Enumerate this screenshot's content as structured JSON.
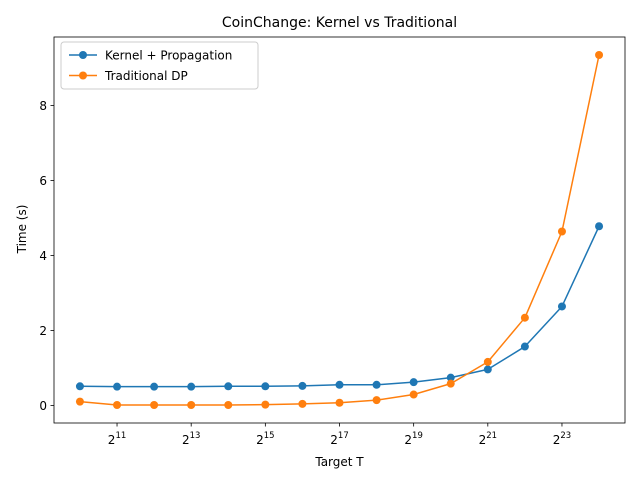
{
  "chart_data": {
    "type": "line",
    "title": "CoinChange: Kernel vs Traditional",
    "xlabel": "Target T",
    "ylabel": "Time (s)",
    "x_scale": "log2",
    "x": [
      1024,
      2048,
      4096,
      8192,
      16384,
      32768,
      65536,
      131072,
      262144,
      524288,
      1048576,
      2097152,
      4194304,
      8388608,
      16777216
    ],
    "x_ticks": [
      {
        "value": 2048,
        "base": "2",
        "exp": "11"
      },
      {
        "value": 8192,
        "base": "2",
        "exp": "13"
      },
      {
        "value": 32768,
        "base": "2",
        "exp": "15"
      },
      {
        "value": 131072,
        "base": "2",
        "exp": "17"
      },
      {
        "value": 524288,
        "base": "2",
        "exp": "19"
      },
      {
        "value": 2097152,
        "base": "2",
        "exp": "21"
      },
      {
        "value": 8388608,
        "base": "2",
        "exp": "23"
      }
    ],
    "y_ticks": [
      0,
      2,
      4,
      6,
      8
    ],
    "ylim": [
      -0.47,
      9.83
    ],
    "grid": false,
    "legend_position": "top-left",
    "series": [
      {
        "name": "Kernel + Propagation",
        "color": "#1f77b4",
        "values": [
          0.51,
          0.5,
          0.5,
          0.5,
          0.51,
          0.51,
          0.52,
          0.55,
          0.55,
          0.62,
          0.74,
          0.96,
          1.57,
          2.64,
          4.78
        ]
      },
      {
        "name": "Traditional DP",
        "color": "#ff7f0e",
        "values": [
          0.1,
          0.01,
          0.01,
          0.01,
          0.01,
          0.02,
          0.04,
          0.07,
          0.14,
          0.29,
          0.58,
          1.16,
          2.34,
          4.64,
          9.35
        ]
      }
    ]
  }
}
